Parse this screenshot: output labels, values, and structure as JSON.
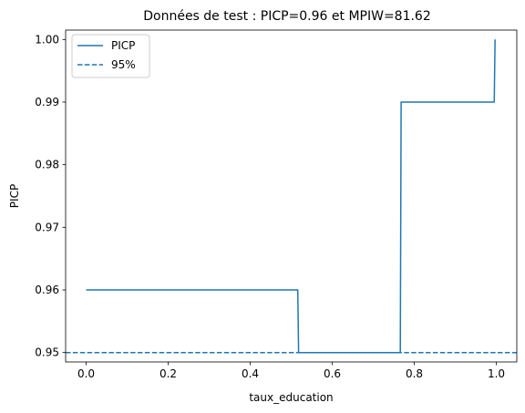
{
  "chart_data": {
    "type": "line",
    "title": "Données de test : PICP=0.96 et MPIW=81.62",
    "xlabel": "taux_education",
    "ylabel": "PICP",
    "xlim": [
      -0.05,
      1.05
    ],
    "ylim": [
      0.9485,
      1.0015
    ],
    "xticks": [
      0.0,
      0.2,
      0.4,
      0.6,
      0.8,
      1.0
    ],
    "xtick_labels": [
      "0.0",
      "0.2",
      "0.4",
      "0.6",
      "0.8",
      "1.0"
    ],
    "yticks": [
      0.95,
      0.96,
      0.97,
      0.98,
      0.99,
      1.0
    ],
    "ytick_labels": [
      "0.95",
      "0.96",
      "0.97",
      "0.98",
      "0.99",
      "1.00"
    ],
    "grid": false,
    "legend_position": "top-left",
    "series": [
      {
        "name": "PICP",
        "style": "solid",
        "color": "#1f77b4",
        "x": [
          0.0,
          0.516,
          0.518,
          0.766,
          0.768,
          0.995,
          0.997
        ],
        "y": [
          0.96,
          0.96,
          0.95,
          0.95,
          0.99,
          0.99,
          1.0
        ]
      },
      {
        "name": "95%",
        "style": "dashed",
        "color": "#1f77b4",
        "y_constant": 0.95
      }
    ]
  }
}
